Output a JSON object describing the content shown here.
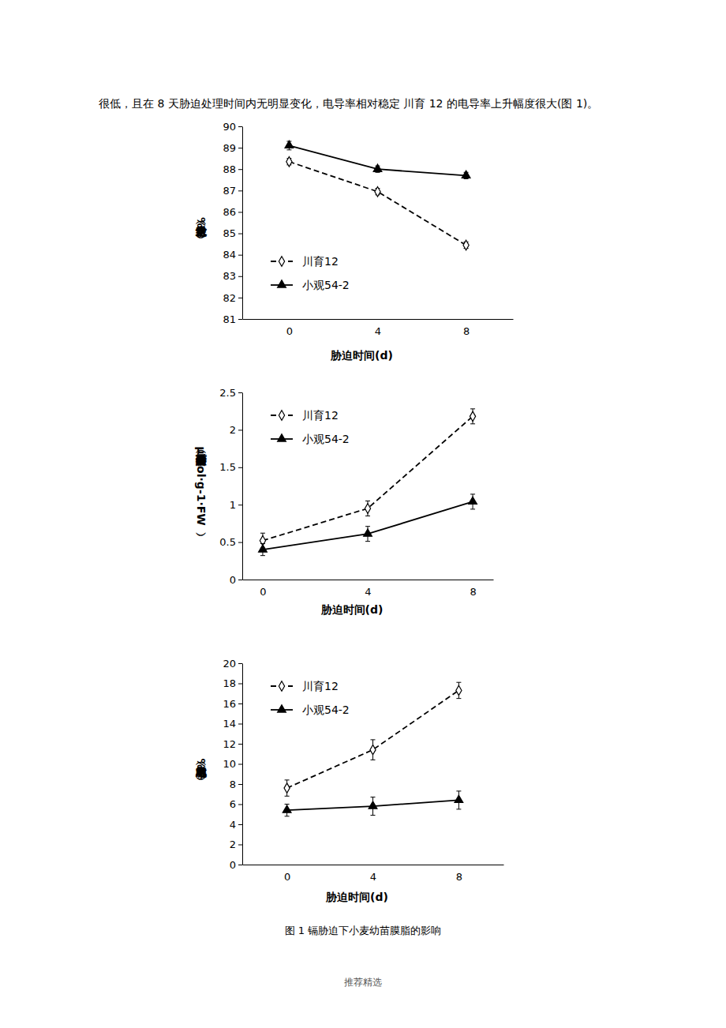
{
  "paragraph": "很低，且在 8 天胁迫处理时间内无明显变化，电导率相对稳定 川育 12 的电导率上升幅度很大(图 1)。",
  "chart_data": [
    {
      "type": "line",
      "x_label": "胁迫时间(d)",
      "y_label": "绝对含水量（%）",
      "categories": [
        "0",
        "4",
        "8"
      ],
      "ylim": [
        81,
        90
      ],
      "yticks": [
        81,
        82,
        83,
        84,
        85,
        86,
        87,
        88,
        89,
        90
      ],
      "legend": "lower left",
      "series": [
        {
          "name": "川育12",
          "color": "#000000",
          "marker": "diamond_open",
          "line_style": "dashed",
          "values": [
            88.35,
            86.95,
            84.45
          ],
          "errors": [
            0.15,
            0.15,
            0.15
          ]
        },
        {
          "name": "小观54-2",
          "color": "#000000",
          "marker": "triangle",
          "line_style": "solid",
          "values": [
            89.1,
            88.0,
            87.7
          ],
          "errors": [
            0.2,
            0.15,
            0.15
          ]
        }
      ]
    },
    {
      "type": "line",
      "x_label": "胁迫时间(d)",
      "y_label": "丙二醛含量（μmol·g-1·FW）",
      "categories": [
        "0",
        "4",
        "8"
      ],
      "ylim": [
        0,
        2.5
      ],
      "yticks": [
        0,
        0.5,
        1,
        1.5,
        2,
        2.5
      ],
      "legend": "upper left",
      "series": [
        {
          "name": "川育12",
          "color": "#000000",
          "marker": "diamond_open",
          "line_style": "dashed",
          "values": [
            0.52,
            0.95,
            2.18
          ],
          "errors": [
            0.1,
            0.1,
            0.1
          ]
        },
        {
          "name": "小观54-2",
          "color": "#000000",
          "marker": "triangle",
          "line_style": "solid",
          "values": [
            0.4,
            0.61,
            1.04
          ],
          "errors": [
            0.08,
            0.1,
            0.1
          ]
        }
      ]
    },
    {
      "type": "line",
      "x_label": "胁迫时间(d)",
      "y_label": "相对电导率（%）",
      "categories": [
        "0",
        "4",
        "8"
      ],
      "ylim": [
        0,
        20
      ],
      "yticks": [
        0,
        2,
        4,
        6,
        8,
        10,
        12,
        14,
        16,
        18,
        20
      ],
      "legend": "upper left",
      "series": [
        {
          "name": "川育12",
          "color": "#000000",
          "marker": "diamond_open",
          "line_style": "dashed",
          "values": [
            7.6,
            11.4,
            17.3
          ],
          "errors": [
            0.8,
            1.0,
            0.8
          ]
        },
        {
          "name": "小观54-2",
          "color": "#000000",
          "marker": "triangle",
          "line_style": "solid",
          "values": [
            5.4,
            5.8,
            6.4
          ],
          "errors": [
            0.6,
            0.9,
            0.9
          ]
        }
      ]
    }
  ],
  "caption": "图 1 镉胁迫下小麦幼苗膜脂的影响",
  "footer": "推荐精选"
}
